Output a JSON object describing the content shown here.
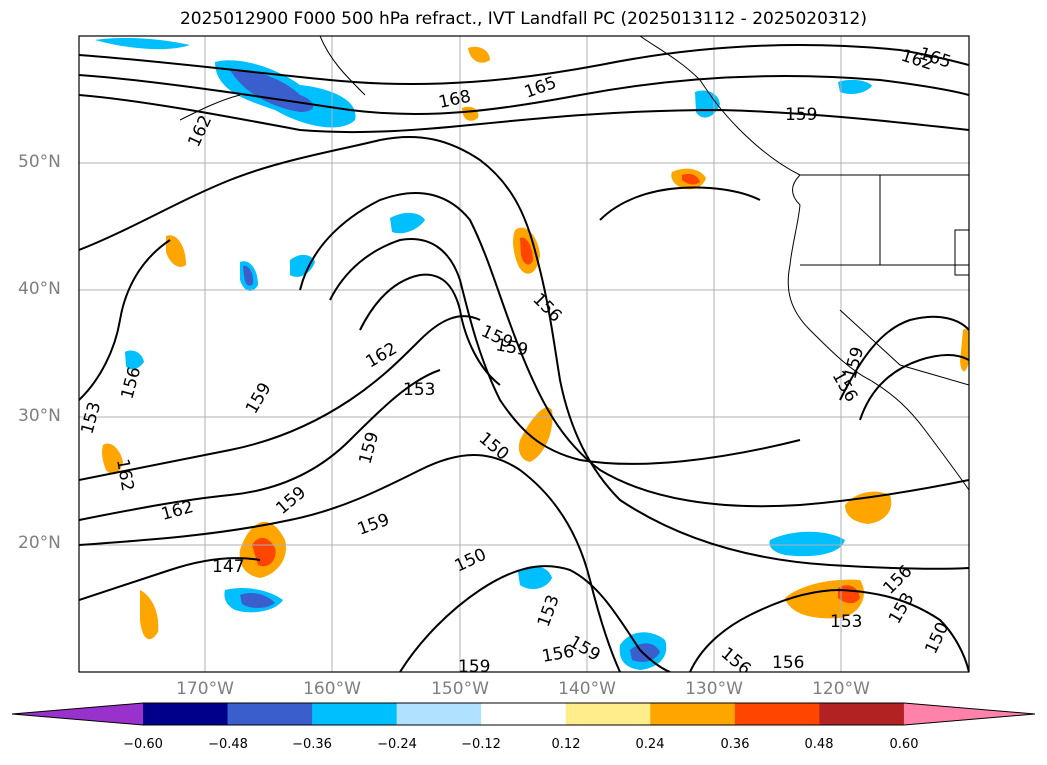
{
  "title": "2025012900 F000 500 hPa refract., IVT Landfall PC (2025013112 - 2025020312)",
  "map": {
    "lon_range": [
      -180,
      -110
    ],
    "lat_range": [
      10,
      60
    ],
    "lat_labels": [
      {
        "lat": 50,
        "label": "50°N"
      },
      {
        "lat": 40,
        "label": "40°N"
      },
      {
        "lat": 30,
        "label": "30°N"
      },
      {
        "lat": 20,
        "label": "20°N"
      }
    ],
    "lon_labels": [
      {
        "lon": -170,
        "label": "170°W"
      },
      {
        "lon": -160,
        "label": "160°W"
      },
      {
        "lon": -150,
        "label": "150°W"
      },
      {
        "lon": -140,
        "label": "140°W"
      },
      {
        "lon": -130,
        "label": "130°W"
      },
      {
        "lon": -120,
        "label": "120°W"
      }
    ],
    "gridlines": true,
    "contour_labels": [
      "165",
      "162",
      "168",
      "165",
      "159",
      "162",
      "156",
      "159",
      "159",
      "162",
      "153",
      "159",
      "159",
      "156",
      "153",
      "150",
      "162",
      "162",
      "159",
      "159",
      "147",
      "150",
      "153",
      "156",
      "159",
      "156",
      "156",
      "153",
      "156",
      "153",
      "150",
      "159",
      "156",
      "159"
    ]
  },
  "colorbar": {
    "ticks": [
      "−0.60",
      "−0.48",
      "−0.36",
      "−0.24",
      "−0.12",
      "0.12",
      "0.24",
      "0.36",
      "0.48",
      "0.60"
    ],
    "colors": [
      "#9932cc",
      "#00008b",
      "#3a5fcd",
      "#00bfff",
      "#b0e2ff",
      "#ffffff",
      "#ffec8b",
      "#ffa500",
      "#ff4500",
      "#b22222",
      "#ff82ab"
    ]
  }
}
